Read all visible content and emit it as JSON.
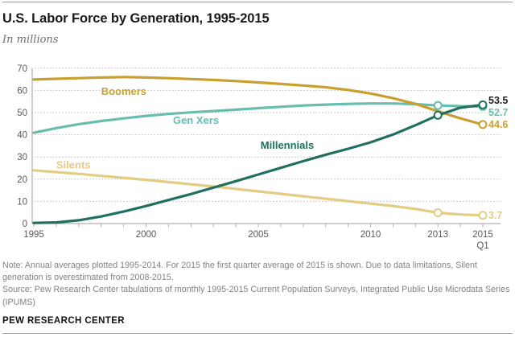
{
  "header": {
    "title": "U.S. Labor Force by Generation, 1995-2015",
    "subtitle": "In millions"
  },
  "chart_data": {
    "type": "line",
    "title": "U.S. Labor Force by Generation, 1995-2015",
    "ylabel": "In millions",
    "ylim": [
      0,
      70
    ],
    "yticks": [
      0,
      10,
      20,
      30,
      40,
      50,
      60,
      70
    ],
    "grid": "dotted-horizontal",
    "legend_position": "inline-labels",
    "x": [
      1995,
      1996,
      1997,
      1998,
      1999,
      2000,
      2001,
      2002,
      2003,
      2004,
      2005,
      2006,
      2007,
      2008,
      2009,
      2010,
      2011,
      2012,
      2013,
      2014,
      2015
    ],
    "x_ticks": [
      {
        "t": 1995,
        "label": "1995"
      },
      {
        "t": 2000,
        "label": "2000"
      },
      {
        "t": 2005,
        "label": "2005"
      },
      {
        "t": 2010,
        "label": "2010"
      },
      {
        "t": 2013,
        "label": "2013"
      },
      {
        "t": 2015,
        "label": "2015",
        "sublabel": "Q1"
      }
    ],
    "series": [
      {
        "name": "Silents",
        "color": "#E4CC83",
        "values": [
          24.0,
          23.2,
          22.4,
          21.5,
          20.6,
          19.7,
          18.7,
          17.7,
          16.7,
          15.6,
          14.5,
          13.4,
          12.3,
          11.2,
          10.1,
          9.0,
          7.9,
          6.6,
          4.9,
          4.1,
          3.7
        ],
        "label": {
          "t": 1996.0,
          "v": 24.8
        },
        "marker_years": [
          2013,
          2015
        ],
        "end_label": {
          "text": "3.7",
          "v": 2.2
        }
      },
      {
        "name": "Gen Xers",
        "color": "#68BEAC",
        "values": [
          40.9,
          43.0,
          44.8,
          46.2,
          47.4,
          48.5,
          49.4,
          50.1,
          50.7,
          51.3,
          52.0,
          52.6,
          53.2,
          53.6,
          53.9,
          54.1,
          54.1,
          53.8,
          53.2,
          52.9,
          52.7
        ],
        "label": {
          "t": 2001.2,
          "v": 44.9
        },
        "marker_years": [
          2013,
          2015
        ],
        "end_label": {
          "text": "52.7",
          "v": 48.6
        }
      },
      {
        "name": "Boomers",
        "color": "#C9A02F",
        "values": [
          64.9,
          65.2,
          65.5,
          65.8,
          66.0,
          65.8,
          65.5,
          65.1,
          64.7,
          64.2,
          63.6,
          62.9,
          62.2,
          61.4,
          60.2,
          58.6,
          56.5,
          53.9,
          50.6,
          47.4,
          44.6
        ],
        "label": {
          "t": 1998.0,
          "v": 57.9
        },
        "marker_years": [
          2015
        ],
        "end_label": {
          "text": "44.6",
          "v": 43.1
        }
      },
      {
        "name": "Millennials",
        "color": "#20705D",
        "values": [
          0.3,
          0.5,
          1.5,
          3.2,
          5.4,
          7.9,
          10.6,
          13.3,
          16.2,
          19.1,
          22.1,
          25.1,
          28.1,
          31.0,
          33.7,
          36.6,
          40.1,
          44.3,
          48.8,
          52.2,
          53.5
        ],
        "label": {
          "t": 2005.1,
          "v": 33.7
        },
        "marker_years": [
          2013,
          2015
        ],
        "end_label": {
          "text": "53.5",
          "v": 54.0,
          "color": "#1f1f1f"
        }
      }
    ]
  },
  "notes": {
    "note": "Note: Annual averages plotted 1995-2014. For 2015 the first quarter average of 2015 is shown. Due to data limitations, Silent generation is overestimated from 2008-2015.",
    "source": "Source: Pew Research Center tabulations of monthly 1995-2015 Current Population Surveys, Integrated Public Use Microdata Series (IPUMS)"
  },
  "footer": {
    "brand": "PEW RESEARCH CENTER"
  }
}
